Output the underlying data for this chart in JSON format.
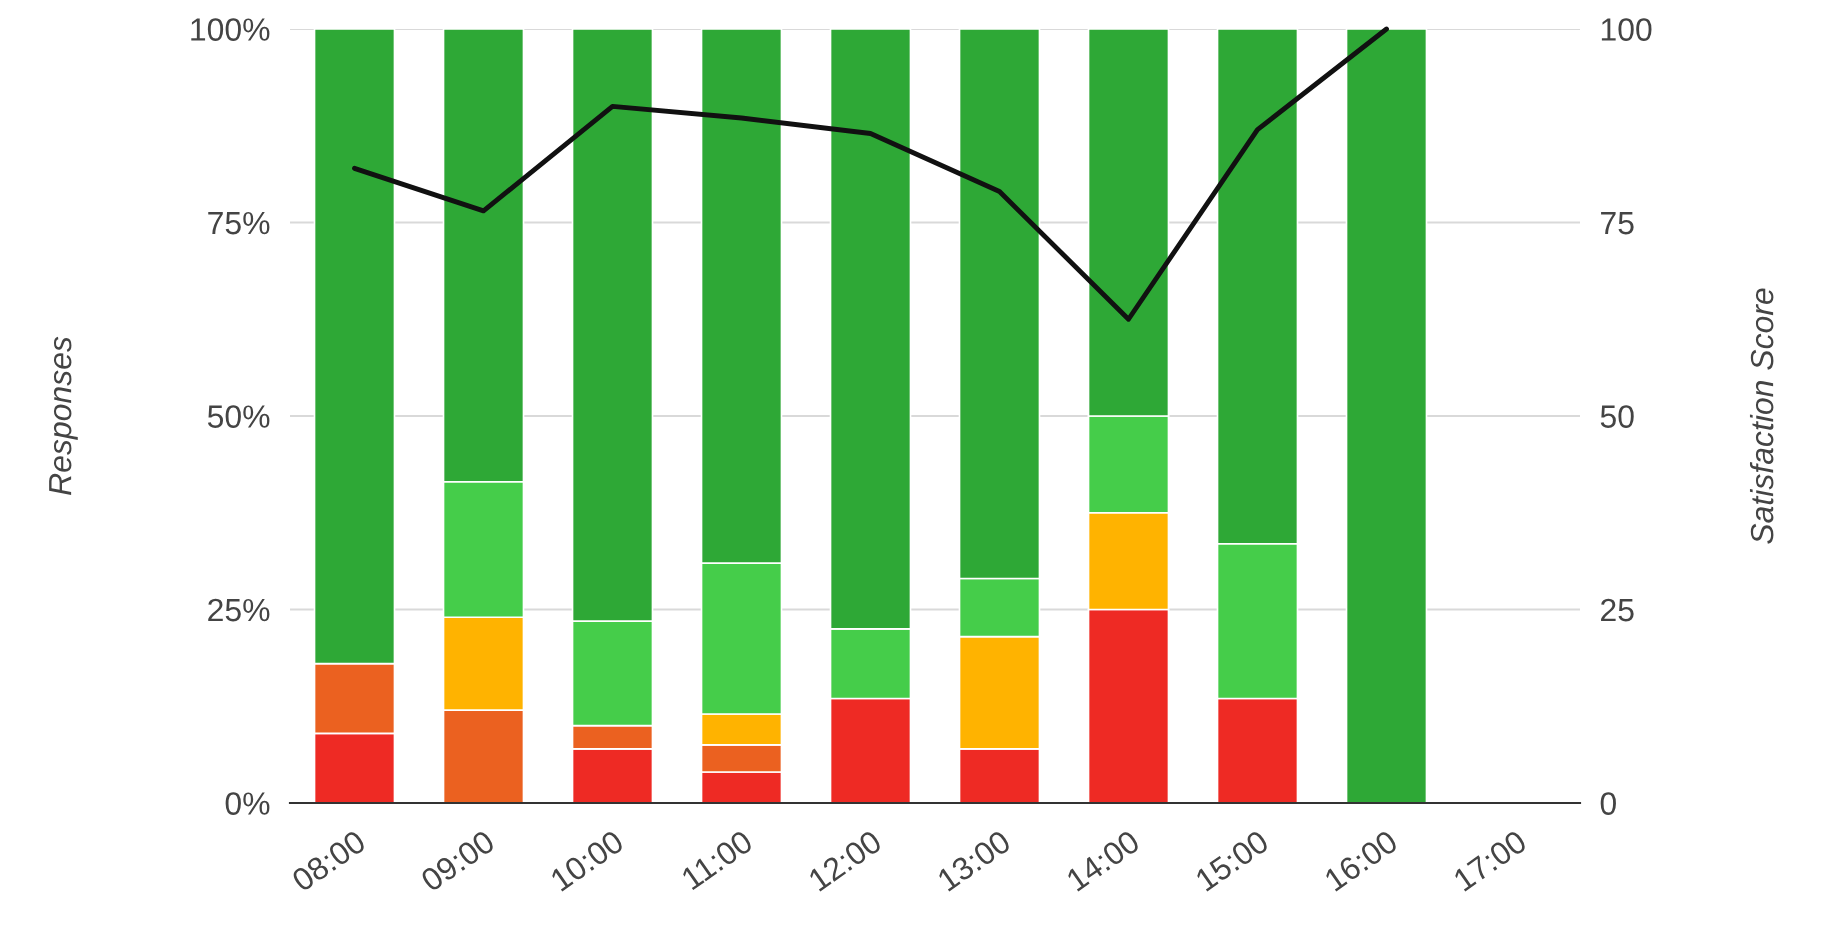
{
  "chart_data": {
    "type": "bar",
    "stacked": true,
    "ylabel": "Responses",
    "y2label": "Satisfaction Score",
    "categories": [
      "08:00",
      "09:00",
      "10:00",
      "11:00",
      "12:00",
      "13:00",
      "14:00",
      "15:00",
      "16:00",
      "17:00"
    ],
    "series": [
      {
        "color": "#ee2a24",
        "values": [
          9,
          0,
          7,
          4,
          13.5,
          7,
          25,
          13.5,
          0,
          null
        ]
      },
      {
        "color": "#eb6120",
        "values": [
          9,
          12,
          3,
          3.5,
          0,
          0,
          0,
          0,
          0,
          null
        ]
      },
      {
        "color": "#ffb300",
        "values": [
          0,
          12,
          0,
          4,
          0,
          14.5,
          12.5,
          0,
          0,
          null
        ]
      },
      {
        "color": "#45cd4a",
        "values": [
          0,
          17.5,
          13.5,
          19.5,
          9,
          7.5,
          12.5,
          20,
          0,
          null
        ]
      },
      {
        "color": "#2ea836",
        "values": [
          82,
          58.5,
          76.5,
          69,
          77.5,
          71,
          50,
          66.5,
          100,
          null
        ]
      },
      {
        "type": "line",
        "axis": "y2",
        "color": "#111111",
        "values": [
          82,
          76.5,
          90,
          88.5,
          86.5,
          79,
          62.5,
          87,
          100,
          null
        ]
      }
    ],
    "ylim": [
      0,
      100
    ],
    "yticks": [
      {
        "value": 0,
        "label": "0%"
      },
      {
        "value": 25,
        "label": "25%"
      },
      {
        "value": 50,
        "label": "50%"
      },
      {
        "value": 75,
        "label": "75%"
      },
      {
        "value": 100,
        "label": "100%"
      }
    ],
    "y2lim": [
      0,
      100
    ],
    "y2ticks": [
      0,
      25,
      50,
      75,
      100
    ],
    "grid": "y",
    "legend": false
  }
}
